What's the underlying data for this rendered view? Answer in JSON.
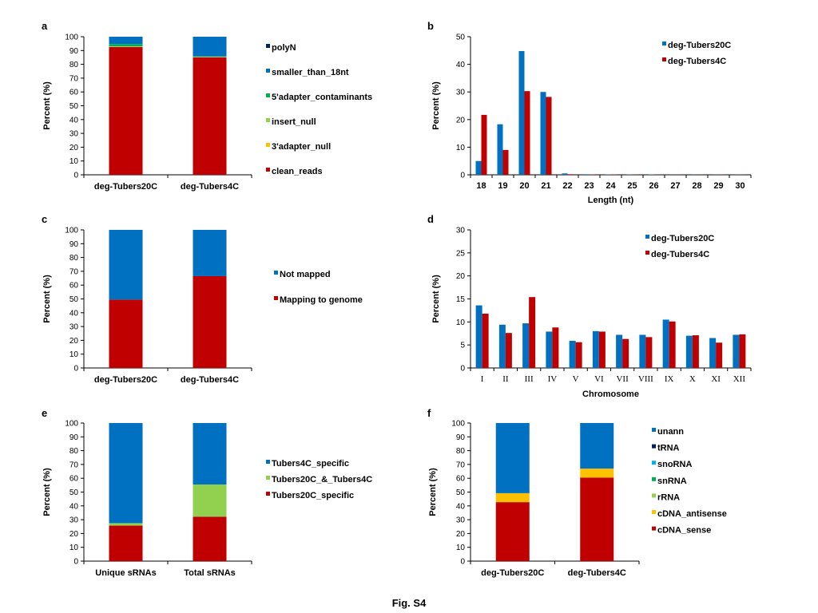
{
  "caption": "Fig. S4",
  "colors": {
    "red": "#c00000",
    "blue": "#0070c0",
    "green": "#00b050",
    "lightgreen": "#92d050",
    "yellow": "#ffc000",
    "navy": "#002060",
    "cyan": "#00b0f0"
  },
  "chart_data": [
    {
      "panel": "a",
      "type": "bar",
      "stacked": true,
      "categories": [
        "deg-Tubers20C",
        "deg-Tubers4C"
      ],
      "ylabel": "Percent (%)",
      "ylim": [
        0,
        100
      ],
      "yticks": [
        0,
        10,
        20,
        30,
        40,
        50,
        60,
        70,
        80,
        90,
        100
      ],
      "legend_order": [
        "polyN",
        "smaller_than_18nt",
        "5'adapter_contaminants",
        "insert_null",
        "3'adapter_null",
        "clean_reads"
      ],
      "series": [
        {
          "name": "clean_reads",
          "color": "#c00000",
          "values": [
            92.5,
            85.0
          ]
        },
        {
          "name": "3'adapter_null",
          "color": "#ffc000",
          "values": [
            0.2,
            0.2
          ]
        },
        {
          "name": "insert_null",
          "color": "#92d050",
          "values": [
            0.3,
            0.2
          ]
        },
        {
          "name": "5'adapter_contaminants",
          "color": "#00b050",
          "values": [
            1.7,
            0.3
          ]
        },
        {
          "name": "smaller_than_18nt",
          "color": "#0070c0",
          "values": [
            5.3,
            14.3
          ]
        },
        {
          "name": "polyN",
          "color": "#002060",
          "values": [
            0.0,
            0.0
          ]
        }
      ]
    },
    {
      "panel": "b",
      "type": "bar",
      "categories": [
        "18",
        "19",
        "20",
        "21",
        "22",
        "23",
        "24",
        "25",
        "26",
        "27",
        "28",
        "29",
        "30"
      ],
      "xlabel": "Length (nt)",
      "ylabel": "Percent (%)",
      "ylim": [
        0,
        50
      ],
      "yticks": [
        0,
        10,
        20,
        30,
        40,
        50
      ],
      "series": [
        {
          "name": "deg-Tubers20C",
          "color": "#0070c0",
          "values": [
            5,
            18.3,
            44.8,
            30,
            0.5,
            0.2,
            0.1,
            0.1,
            0.1,
            0.05,
            0.05,
            0.05,
            0.05
          ]
        },
        {
          "name": "deg-Tubers4C",
          "color": "#c00000",
          "values": [
            21.7,
            9,
            30.3,
            28.2,
            0.2,
            0.1,
            0.1,
            0.05,
            0.05,
            0.05,
            0.05,
            0.05,
            0.05
          ]
        }
      ]
    },
    {
      "panel": "c",
      "type": "bar",
      "stacked": true,
      "categories": [
        "deg-Tubers20C",
        "deg-Tubers4C"
      ],
      "ylabel": "Percent (%)",
      "ylim": [
        0,
        100
      ],
      "yticks": [
        0,
        10,
        20,
        30,
        40,
        50,
        60,
        70,
        80,
        90,
        100
      ],
      "legend_order": [
        "Not mapped",
        "Mapping to genome"
      ],
      "series": [
        {
          "name": "Mapping to genome",
          "color": "#c00000",
          "values": [
            49.5,
            66.5
          ]
        },
        {
          "name": "Not mapped",
          "color": "#0070c0",
          "values": [
            50.5,
            33.5
          ]
        }
      ]
    },
    {
      "panel": "d",
      "type": "bar",
      "categories": [
        "I",
        "II",
        "III",
        "IV",
        "V",
        "VI",
        "VII",
        "VIII",
        "IX",
        "X",
        "XI",
        "XII"
      ],
      "xlabel": "Chromosome",
      "ylabel": "Percent (%)",
      "ylim": [
        0,
        30
      ],
      "yticks": [
        0,
        5,
        10,
        15,
        20,
        25,
        30
      ],
      "series": [
        {
          "name": "deg-Tubers20C",
          "color": "#0070c0",
          "values": [
            13.6,
            9.4,
            9.7,
            7.9,
            5.9,
            8.0,
            7.2,
            7.2,
            10.5,
            7.0,
            6.5,
            7.2
          ]
        },
        {
          "name": "deg-Tubers4C",
          "color": "#c00000",
          "values": [
            11.8,
            7.6,
            15.4,
            8.8,
            5.6,
            7.9,
            6.3,
            6.7,
            10.1,
            7.1,
            5.5,
            7.3
          ]
        }
      ]
    },
    {
      "panel": "e",
      "type": "bar",
      "stacked": true,
      "categories": [
        "Unique sRNAs",
        "Total sRNAs"
      ],
      "ylabel": "Percent (%)",
      "ylim": [
        0,
        100
      ],
      "yticks": [
        0,
        10,
        20,
        30,
        40,
        50,
        60,
        70,
        80,
        90,
        100
      ],
      "legend_order": [
        "Tubers4C_specific",
        "Tubers20C_&_Tubers4C",
        "Tubers20C_specific"
      ],
      "series": [
        {
          "name": "Tubers20C_specific",
          "color": "#c00000",
          "values": [
            25.7,
            32.2
          ]
        },
        {
          "name": "Tubers20C_&_Tubers4C",
          "color": "#92d050",
          "values": [
            1.8,
            23.3
          ]
        },
        {
          "name": "Tubers4C_specific",
          "color": "#0070c0",
          "values": [
            72.5,
            44.5
          ]
        }
      ]
    },
    {
      "panel": "f",
      "type": "bar",
      "stacked": true,
      "categories": [
        "deg-Tubers20C",
        "deg-Tubers4C"
      ],
      "ylabel": "Percent (%)",
      "ylim": [
        0,
        100
      ],
      "yticks": [
        0,
        10,
        20,
        30,
        40,
        50,
        60,
        70,
        80,
        90,
        100
      ],
      "legend_order": [
        "unann",
        "tRNA",
        "snoRNA",
        "snRNA",
        "rRNA",
        "cDNA_antisense",
        "cDNA_sense"
      ],
      "series": [
        {
          "name": "cDNA_sense",
          "color": "#c00000",
          "values": [
            42.7,
            60.5
          ]
        },
        {
          "name": "cDNA_antisense",
          "color": "#ffc000",
          "values": [
            6.5,
            6.5
          ]
        },
        {
          "name": "rRNA",
          "color": "#92d050",
          "values": [
            0,
            0
          ]
        },
        {
          "name": "snRNA",
          "color": "#00b050",
          "values": [
            0,
            0
          ]
        },
        {
          "name": "snoRNA",
          "color": "#00b0f0",
          "values": [
            0,
            0
          ]
        },
        {
          "name": "tRNA",
          "color": "#002060",
          "values": [
            0,
            0
          ]
        },
        {
          "name": "unann",
          "color": "#0070c0",
          "values": [
            50.8,
            33.0
          ]
        }
      ]
    }
  ]
}
